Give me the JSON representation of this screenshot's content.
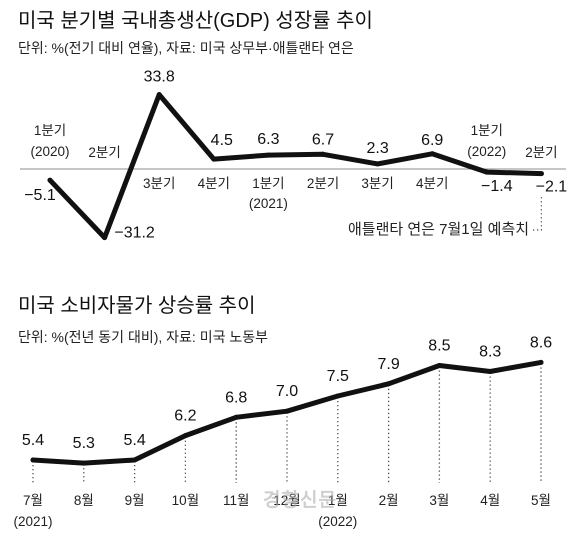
{
  "watermark": "경향신문",
  "chart_data": [
    {
      "type": "line",
      "title": "미국 분기별 국내총생산(GDP) 성장률 추이",
      "subtitle": "단위: %(전기 대비 연율), 자료: 미국 상무부·애틀랜타 연은",
      "categories": [
        {
          "label": "1분기",
          "year": "(2020)"
        },
        {
          "label": "2분기"
        },
        {
          "label": "3분기"
        },
        {
          "label": "4분기"
        },
        {
          "label": "1분기",
          "year": "(2021)"
        },
        {
          "label": "2분기"
        },
        {
          "label": "3분기"
        },
        {
          "label": "4분기"
        },
        {
          "label": "1분기",
          "year": "(2022)"
        },
        {
          "label": "2분기"
        }
      ],
      "values": [
        -5.1,
        -31.2,
        33.8,
        4.5,
        6.3,
        6.7,
        2.3,
        6.9,
        -1.4,
        -2.1
      ],
      "data_labels": [
        "−5.1",
        "−31.2",
        "33.8",
        "4.5",
        "6.3",
        "6.7",
        "2.3",
        "6.9",
        "−1.4",
        "−2.1"
      ],
      "annotation": "애틀랜타 연은 7월1일 예측치",
      "zero_line": true,
      "grid": false,
      "line_color": "#111111"
    },
    {
      "type": "line",
      "title": "미국 소비자물가 상승률 추이",
      "subtitle": "단위: %(전년 동기 대비), 자료: 미국 노동부",
      "categories": [
        {
          "label": "7월",
          "year": "(2021)"
        },
        {
          "label": "8월"
        },
        {
          "label": "9월"
        },
        {
          "label": "10월"
        },
        {
          "label": "11월"
        },
        {
          "label": "12월"
        },
        {
          "label": "1월",
          "year": "(2022)"
        },
        {
          "label": "2월"
        },
        {
          "label": "3월"
        },
        {
          "label": "4월"
        },
        {
          "label": "5월"
        }
      ],
      "values": [
        5.4,
        5.3,
        5.4,
        6.2,
        6.8,
        7.0,
        7.5,
        7.9,
        8.5,
        8.3,
        8.6
      ],
      "data_labels": [
        "5.4",
        "5.3",
        "5.4",
        "6.2",
        "6.8",
        "7.0",
        "7.5",
        "7.9",
        "8.5",
        "8.3",
        "8.6"
      ],
      "drop_lines": true,
      "grid": false,
      "line_color": "#111111"
    }
  ]
}
